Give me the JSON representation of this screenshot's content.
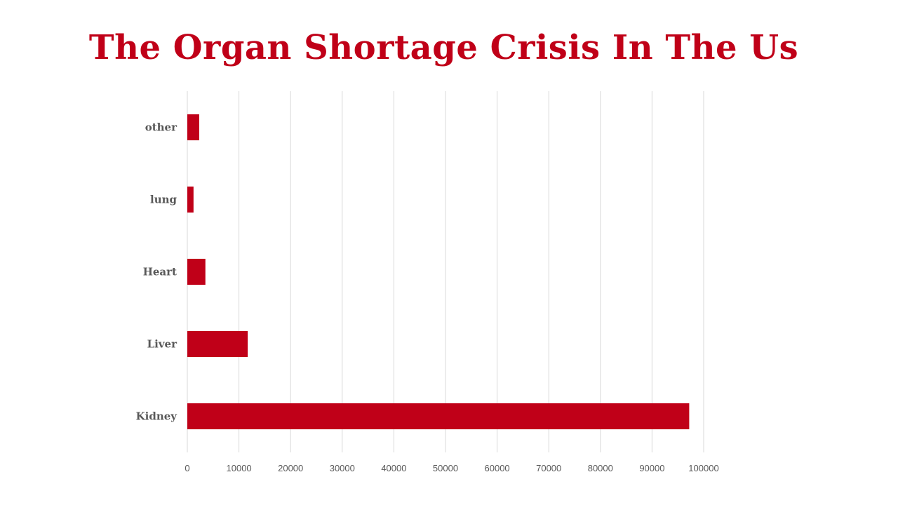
{
  "slide": {
    "title": "The Organ Shortage Crisis In The Us"
  },
  "colors": {
    "title": "#C00018",
    "bar": "#C00018",
    "grid": "#D9D9D9",
    "axis_text": "#595959"
  },
  "chart_data": {
    "type": "bar",
    "orientation": "horizontal",
    "title": "The Organ Shortage Crisis In The Us",
    "categories": [
      "Kidney",
      "Liver",
      "Heart",
      "lung",
      "other"
    ],
    "values": [
      97200,
      11700,
      3500,
      1200,
      2300
    ],
    "x_ticks": [
      "0",
      "10000",
      "20000",
      "30000",
      "40000",
      "50000",
      "60000",
      "70000",
      "80000",
      "90000",
      "100000"
    ],
    "xlim": [
      0,
      100000
    ],
    "xlabel": "",
    "ylabel": "",
    "grid": true,
    "legend": "none"
  }
}
